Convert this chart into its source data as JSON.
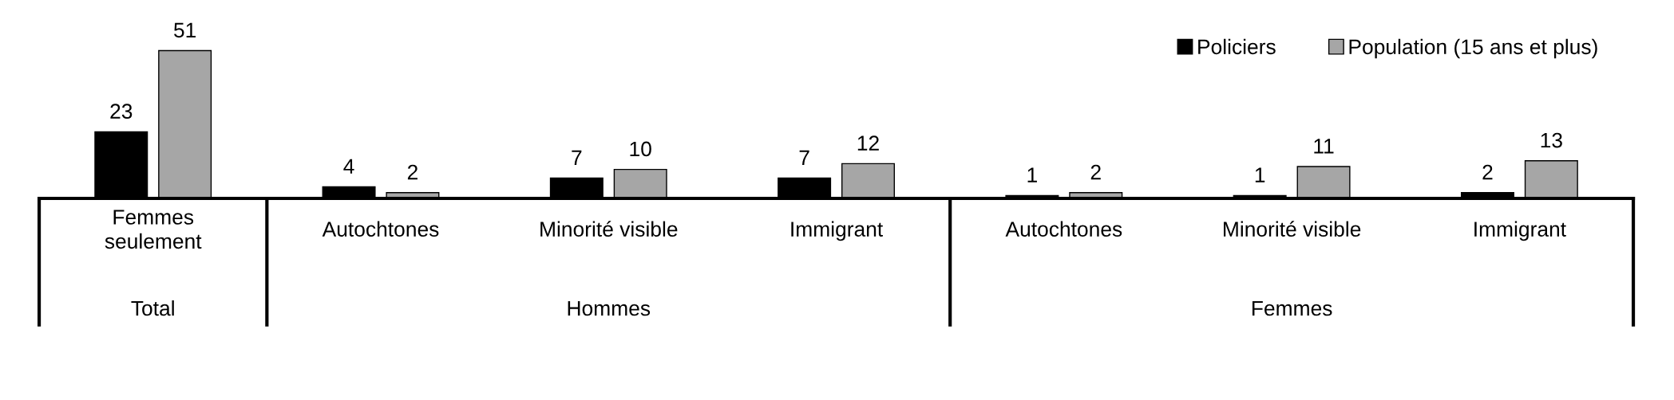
{
  "chart_data": {
    "type": "bar",
    "categories": [
      "Femmes\nseulement",
      "Autochtones",
      "Minorité visible",
      "Immigrant",
      "Autochtones",
      "Minorité visible",
      "Immigrant"
    ],
    "series": [
      {
        "name": "Policiers",
        "color": "#000000",
        "values": [
          23,
          4,
          7,
          7,
          1,
          1,
          2
        ]
      },
      {
        "name": "Population (15 ans et plus)",
        "color": "#a6a6a6",
        "values": [
          51,
          2,
          10,
          12,
          2,
          11,
          13
        ]
      }
    ],
    "annotations": [
      "Total",
      "Hommes",
      "Femmes"
    ],
    "data_labels": true,
    "legend": "top right",
    "tick_labels": "x"
  }
}
